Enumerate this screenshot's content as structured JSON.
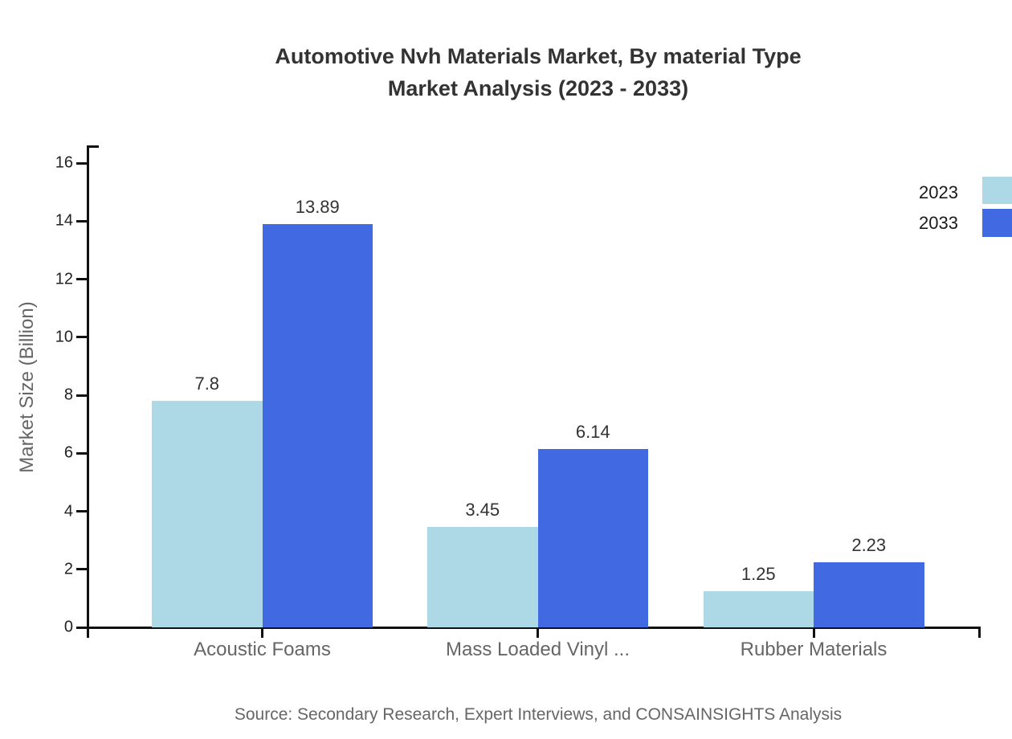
{
  "title": {
    "line1": "Automotive Nvh Materials Market, By material Type",
    "line2": "Market Analysis (2023 - 2033)"
  },
  "chart_data": {
    "type": "bar",
    "categories": [
      "Acoustic Foams",
      "Mass Loaded Vinyl ...",
      "Rubber Materials"
    ],
    "series": [
      {
        "name": "2023",
        "color": "#ADD8E6",
        "values": [
          7.8,
          3.45,
          1.25
        ]
      },
      {
        "name": "2033",
        "color": "#4169E1",
        "values": [
          13.89,
          6.14,
          2.23
        ]
      }
    ],
    "value_labels": {
      "2023": [
        "7.8",
        "3.45",
        "1.25"
      ],
      "2033": [
        "13.89",
        "6.14",
        "2.23"
      ]
    },
    "title": "Automotive Nvh Materials Market, By material Type Market Analysis (2023 - 2033)",
    "xlabel": "",
    "ylabel": "Market Size (Billion)",
    "ylim": [
      0,
      16
    ],
    "ytick_step": 2,
    "grid": false,
    "legend_position": "top-right"
  },
  "colors": {
    "axis": "#111111",
    "title_text": "#333333",
    "tick_label_text": "#222222",
    "category_label_text": "#666666",
    "muted_text": "#666666"
  },
  "source": "Source: Secondary Research, Expert Interviews, and CONSAINSIGHTS Analysis"
}
